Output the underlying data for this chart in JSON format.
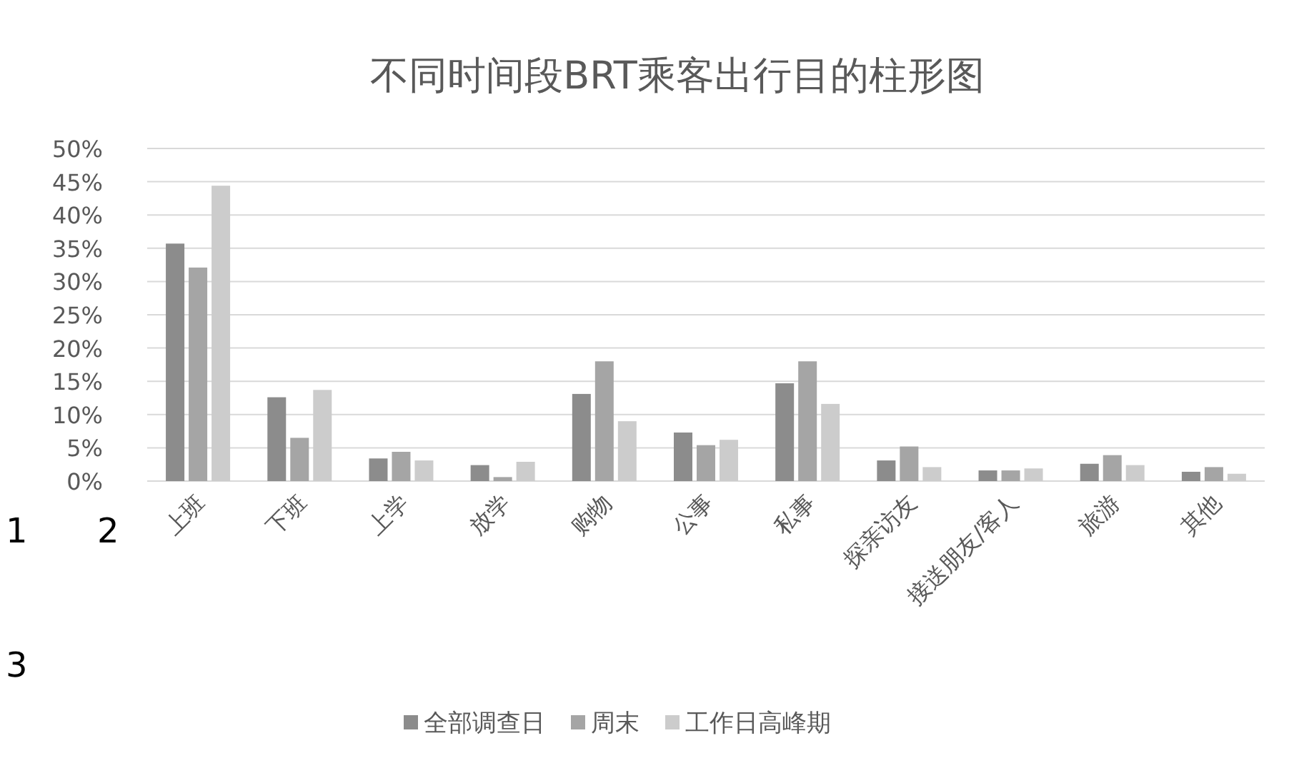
{
  "chart_data": {
    "type": "bar",
    "title": "不同时间段BRT乘客出行目的柱形图",
    "categories": [
      "上班",
      "下班",
      "上学",
      "放学",
      "购物",
      "公事",
      "私事",
      "探亲访友",
      "接送朋友/客人",
      "旅游",
      "其他"
    ],
    "series": [
      {
        "name": "全部调查日",
        "color": "#8c8c8c",
        "values": [
          35.7,
          12.6,
          3.4,
          2.4,
          13.1,
          7.3,
          14.7,
          3.1,
          1.6,
          2.6,
          1.4
        ]
      },
      {
        "name": "周末",
        "color": "#a5a5a5",
        "values": [
          32.1,
          6.5,
          4.4,
          0.6,
          18.0,
          5.4,
          18.0,
          5.2,
          1.6,
          3.9,
          2.1
        ]
      },
      {
        "name": "工作日高峰期",
        "color": "#cccccc",
        "values": [
          44.4,
          13.7,
          3.1,
          2.9,
          9.0,
          6.2,
          11.6,
          2.1,
          1.9,
          2.4,
          1.1
        ]
      }
    ],
    "ylim": [
      0,
      50
    ],
    "yticks": [
      {
        "value": 0,
        "label": "0%"
      },
      {
        "value": 5,
        "label": "5%"
      },
      {
        "value": 10,
        "label": "10%"
      },
      {
        "value": 15,
        "label": "15%"
      },
      {
        "value": 20,
        "label": "20%"
      },
      {
        "value": 25,
        "label": "25%"
      },
      {
        "value": 30,
        "label": "30%"
      },
      {
        "value": 35,
        "label": "35%"
      },
      {
        "value": 40,
        "label": "40%"
      },
      {
        "value": 45,
        "label": "45%"
      },
      {
        "value": 50,
        "label": "50%"
      }
    ],
    "grid": "y",
    "legend": "bottom",
    "annotations": [
      "1",
      "2",
      "3"
    ]
  }
}
